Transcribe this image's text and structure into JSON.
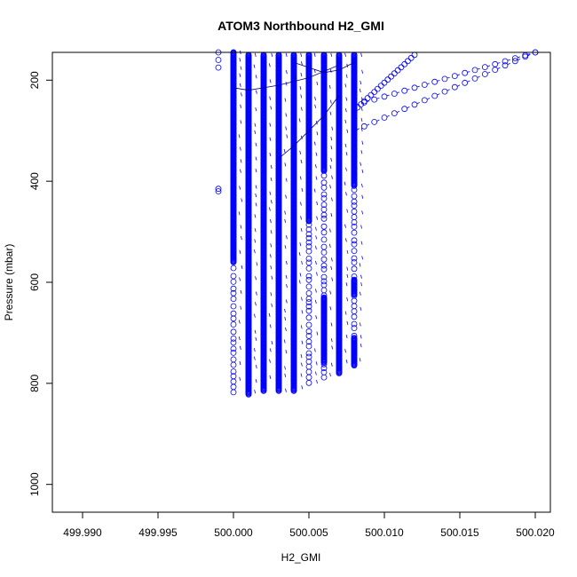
{
  "chart_data": {
    "type": "scatter",
    "title": "ATOM3 Northbound H2_GMI",
    "xlabel": "H2_GMI",
    "ylabel": "Pressure (mbar)",
    "xlim": [
      499.988,
      500.021
    ],
    "ylim": [
      1055,
      145
    ],
    "y_inverted": true,
    "x_ticks": [
      499.99,
      499.995,
      500.0,
      500.005,
      500.01,
      500.015,
      500.02
    ],
    "x_tick_labels": [
      "499.990",
      "499.995",
      "500.000",
      "500.005",
      "500.010",
      "500.015",
      "500.020"
    ],
    "y_ticks": [
      200,
      400,
      600,
      800,
      1000
    ],
    "y_tick_labels": [
      "200",
      "400",
      "600",
      "800",
      "1000"
    ],
    "marker": "open-circle",
    "color": "#0000ff",
    "connected": true,
    "grid": false,
    "legend": "none",
    "columns": [
      {
        "x": 500.0,
        "p_min": 145,
        "p_max": 820,
        "dense": [
          [
            145,
            560
          ]
        ],
        "sparse": true
      },
      {
        "x": 500.001,
        "p_min": 150,
        "p_max": 822,
        "dense": [
          [
            150,
            822
          ]
        ],
        "sparse": false
      },
      {
        "x": 500.002,
        "p_min": 150,
        "p_max": 815,
        "dense": [
          [
            150,
            815
          ]
        ],
        "sparse": false
      },
      {
        "x": 500.003,
        "p_min": 150,
        "p_max": 815,
        "dense": [
          [
            150,
            815
          ]
        ],
        "sparse": false
      },
      {
        "x": 500.004,
        "p_min": 150,
        "p_max": 815,
        "dense": [
          [
            150,
            815
          ]
        ],
        "sparse": false
      },
      {
        "x": 500.005,
        "p_min": 150,
        "p_max": 800,
        "dense": [
          [
            150,
            480
          ]
        ],
        "sparse": true
      },
      {
        "x": 500.006,
        "p_min": 150,
        "p_max": 790,
        "dense": [
          [
            150,
            380
          ],
          [
            630,
            760
          ]
        ],
        "sparse": true
      },
      {
        "x": 500.007,
        "p_min": 150,
        "p_max": 780,
        "dense": [
          [
            150,
            780
          ]
        ],
        "sparse": false
      },
      {
        "x": 500.008,
        "p_min": 150,
        "p_max": 765,
        "dense": [
          [
            150,
            410
          ],
          [
            595,
            625
          ],
          [
            710,
            765
          ]
        ],
        "sparse": true
      }
    ],
    "extra_points": [
      {
        "x": 499.999,
        "y": 145
      },
      {
        "x": 499.999,
        "y": 160
      },
      {
        "x": 499.999,
        "y": 175
      },
      {
        "x": 499.999,
        "y": 415
      },
      {
        "x": 499.999,
        "y": 420
      }
    ],
    "tracks": [
      {
        "start": [
          500.008,
          250
        ],
        "end": [
          500.02,
          145
        ]
      },
      {
        "start": [
          500.008,
          260
        ],
        "end": [
          500.012,
          150
        ]
      },
      {
        "start": [
          500.008,
          300
        ],
        "end": [
          500.02,
          145
        ]
      }
    ],
    "lines": [
      {
        "x": [
          500.0,
          500.001,
          500.003,
          500.005,
          500.007
        ],
        "y": [
          215,
          220,
          210,
          195,
          170
        ]
      },
      {
        "x": [
          500.004,
          500.005,
          500.006,
          500.007,
          500.008
        ],
        "y": [
          165,
          175,
          185,
          180,
          165
        ]
      },
      {
        "x": [
          500.003,
          500.004,
          500.005,
          500.006,
          500.007
        ],
        "y": [
          355,
          330,
          300,
          270,
          230
        ]
      }
    ]
  }
}
